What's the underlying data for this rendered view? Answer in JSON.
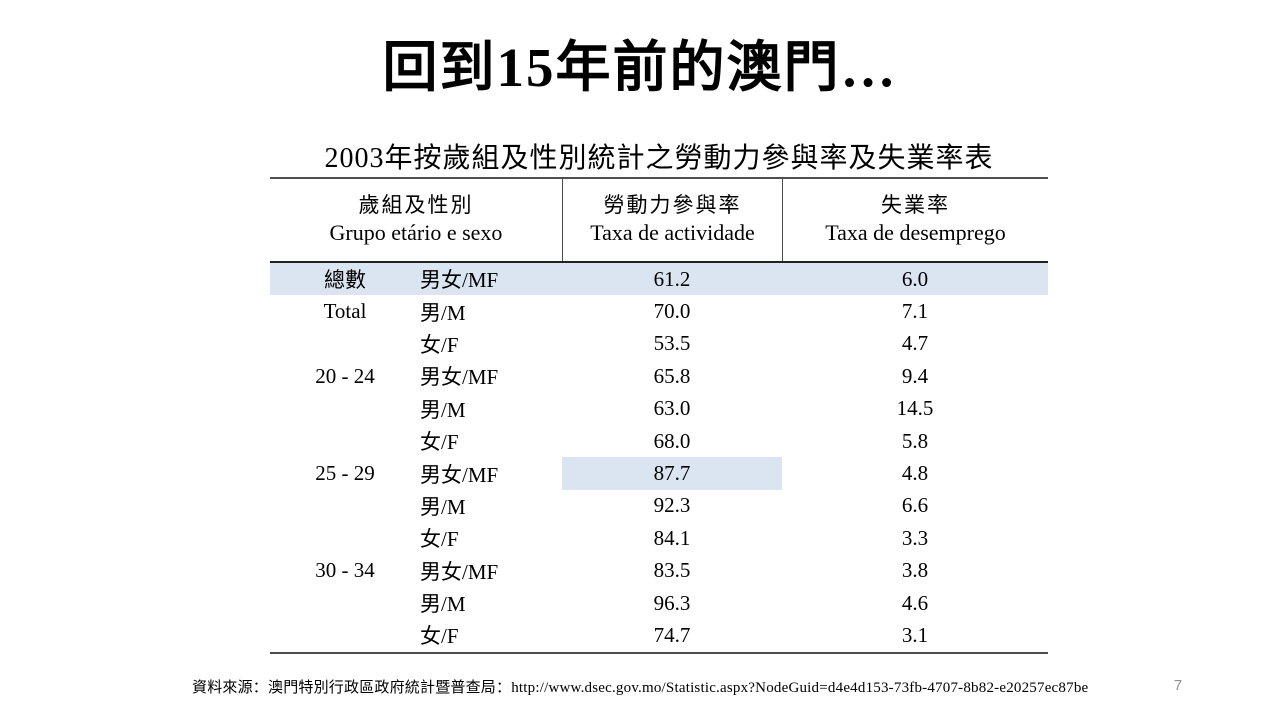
{
  "slide": {
    "title": "回到15年前的澳門…",
    "page_number": "7",
    "source_label": "資料來源：澳門特別行政區政府統計暨普查局：",
    "source_url": "http://www.dsec.gov.mo/Statistic.aspx?NodeGuid=d4e4d153-73fb-4707-8b82-e20257ec87be"
  },
  "table": {
    "title": "2003年按歲組及性別統計之勞動力參與率及失業率表",
    "highlight_color": "#dbe5f1",
    "columns": [
      {
        "zh": "歲組及性別",
        "pt": "Grupo etário e sexo"
      },
      {
        "zh": "勞動力參與率",
        "pt": "Taxa de actividade"
      },
      {
        "zh": "失業率",
        "pt": "Taxa de desemprego"
      }
    ],
    "rows": [
      {
        "age": "總數",
        "sex": "男女/MF",
        "activity": "61.2",
        "unemployment": "6.0",
        "row_highlight": true
      },
      {
        "age": "Total",
        "sex": "男/M",
        "activity": "70.0",
        "unemployment": "7.1"
      },
      {
        "age": "",
        "sex": "女/F",
        "activity": "53.5",
        "unemployment": "4.7"
      },
      {
        "age": "20 - 24",
        "sex": "男女/MF",
        "activity": "65.8",
        "unemployment": "9.4"
      },
      {
        "age": "",
        "sex": "男/M",
        "activity": "63.0",
        "unemployment": "14.5"
      },
      {
        "age": "",
        "sex": "女/F",
        "activity": "68.0",
        "unemployment": "5.8"
      },
      {
        "age": "25 - 29",
        "sex": "男女/MF",
        "activity": "87.7",
        "unemployment": "4.8",
        "cell_highlight": "activity"
      },
      {
        "age": "",
        "sex": "男/M",
        "activity": "92.3",
        "unemployment": "6.6"
      },
      {
        "age": "",
        "sex": "女/F",
        "activity": "84.1",
        "unemployment": "3.3"
      },
      {
        "age": "30 - 34",
        "sex": "男女/MF",
        "activity": "83.5",
        "unemployment": "3.8"
      },
      {
        "age": "",
        "sex": "男/M",
        "activity": "96.3",
        "unemployment": "4.6"
      },
      {
        "age": "",
        "sex": "女/F",
        "activity": "74.7",
        "unemployment": "3.1"
      }
    ]
  }
}
